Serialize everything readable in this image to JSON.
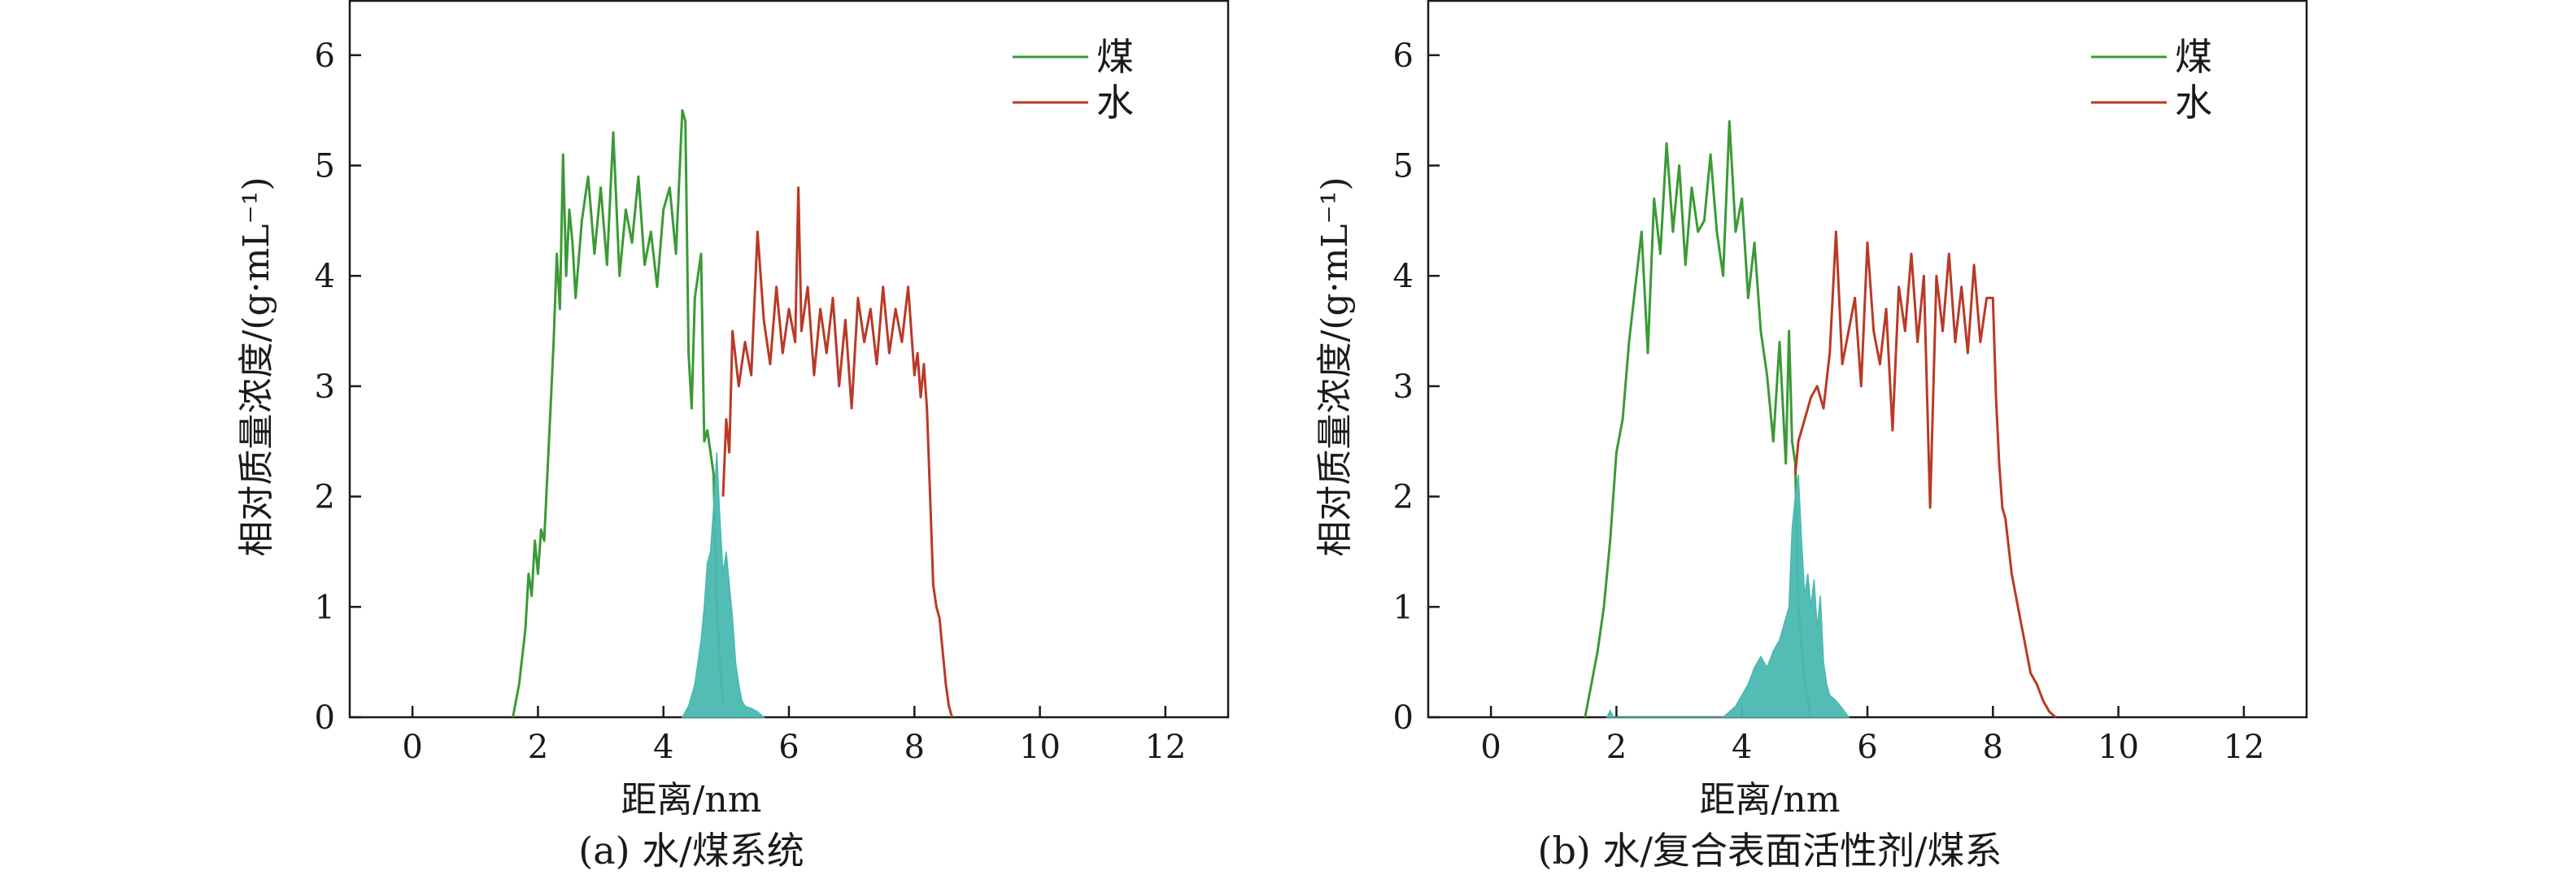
{
  "chart_data": [
    {
      "type": "line",
      "caption": "(a) 水/煤系统",
      "xlabel": "距离/nm",
      "ylabel": "相对质量浓度/(g·mL⁻¹)",
      "xlim": [
        -1,
        13
      ],
      "ylim": [
        0,
        6.5
      ],
      "xticks": [
        0,
        2,
        4,
        6,
        8,
        10,
        12
      ],
      "yticks": [
        0,
        1,
        2,
        3,
        4,
        5,
        6
      ],
      "legend_position": "top-right",
      "series": [
        {
          "name": "煤",
          "color": "#3a9a35",
          "x": [
            1.6,
            1.7,
            1.8,
            1.85,
            1.9,
            1.95,
            2.0,
            2.05,
            2.1,
            2.15,
            2.2,
            2.25,
            2.3,
            2.35,
            2.4,
            2.45,
            2.5,
            2.55,
            2.6,
            2.7,
            2.8,
            2.9,
            3.0,
            3.1,
            3.2,
            3.3,
            3.4,
            3.5,
            3.6,
            3.7,
            3.8,
            3.9,
            4.0,
            4.1,
            4.2,
            4.3,
            4.35,
            4.4,
            4.45,
            4.5,
            4.55,
            4.6,
            4.65,
            4.7,
            4.75,
            4.8,
            4.85,
            4.9,
            4.95
          ],
          "y": [
            0.0,
            0.3,
            0.8,
            1.3,
            1.1,
            1.6,
            1.3,
            1.7,
            1.6,
            2.2,
            2.8,
            3.4,
            4.2,
            3.7,
            5.1,
            4.0,
            4.6,
            4.3,
            3.8,
            4.5,
            4.9,
            4.2,
            4.8,
            4.1,
            5.3,
            4.0,
            4.6,
            4.3,
            4.9,
            4.1,
            4.4,
            3.9,
            4.6,
            4.8,
            4.2,
            5.5,
            5.4,
            3.3,
            2.8,
            3.8,
            4.0,
            4.2,
            2.5,
            2.6,
            2.4,
            2.2,
            1.0,
            0.5,
            0.1
          ]
        },
        {
          "name": "水",
          "color": "#b83a26",
          "x": [
            4.95,
            5.0,
            5.05,
            5.1,
            5.2,
            5.3,
            5.4,
            5.5,
            5.6,
            5.7,
            5.8,
            5.9,
            6.0,
            6.1,
            6.15,
            6.2,
            6.3,
            6.4,
            6.5,
            6.6,
            6.7,
            6.8,
            6.9,
            7.0,
            7.1,
            7.2,
            7.3,
            7.4,
            7.5,
            7.6,
            7.7,
            7.8,
            7.9,
            8.0,
            8.05,
            8.1,
            8.15,
            8.2,
            8.25,
            8.3,
            8.35,
            8.4,
            8.45,
            8.5,
            8.55,
            8.6
          ],
          "y": [
            2.0,
            2.7,
            2.4,
            3.5,
            3.0,
            3.4,
            3.1,
            4.4,
            3.6,
            3.2,
            3.9,
            3.3,
            3.7,
            3.4,
            4.8,
            3.5,
            3.9,
            3.1,
            3.7,
            3.3,
            3.8,
            3.0,
            3.6,
            2.8,
            3.8,
            3.4,
            3.7,
            3.2,
            3.9,
            3.3,
            3.7,
            3.4,
            3.9,
            3.1,
            3.3,
            2.9,
            3.2,
            2.8,
            2.0,
            1.2,
            1.0,
            0.9,
            0.6,
            0.3,
            0.1,
            0.0
          ]
        },
        {
          "name": "",
          "kind": "filled-area",
          "color": "#4ab8b0",
          "x": [
            4.3,
            4.4,
            4.5,
            4.6,
            4.65,
            4.7,
            4.75,
            4.8,
            4.85,
            4.9,
            4.95,
            5.0,
            5.05,
            5.1,
            5.15,
            5.2,
            5.25,
            5.3,
            5.4,
            5.5,
            5.6
          ],
          "y": [
            0.0,
            0.1,
            0.3,
            0.7,
            1.0,
            1.4,
            1.5,
            1.9,
            2.4,
            1.8,
            1.3,
            1.5,
            1.2,
            0.9,
            0.5,
            0.3,
            0.15,
            0.1,
            0.08,
            0.05,
            0.0
          ]
        }
      ]
    },
    {
      "type": "line",
      "caption": "(b) 水/复合表面活性剂/煤系",
      "xlabel": "距离/nm",
      "ylabel": "相对质量浓度/(g·mL⁻¹)",
      "xlim": [
        -1,
        13
      ],
      "ylim": [
        0,
        6.5
      ],
      "xticks": [
        0,
        2,
        4,
        6,
        8,
        10,
        12
      ],
      "yticks": [
        0,
        1,
        2,
        3,
        4,
        5,
        6
      ],
      "legend_position": "top-right",
      "series": [
        {
          "name": "煤",
          "color": "#3a9a35",
          "x": [
            1.5,
            1.6,
            1.7,
            1.8,
            1.9,
            2.0,
            2.1,
            2.2,
            2.3,
            2.4,
            2.5,
            2.6,
            2.7,
            2.8,
            2.9,
            3.0,
            3.1,
            3.2,
            3.3,
            3.4,
            3.5,
            3.6,
            3.7,
            3.8,
            3.9,
            4.0,
            4.1,
            4.2,
            4.3,
            4.4,
            4.5,
            4.6,
            4.7,
            4.75,
            4.8,
            4.85,
            4.9,
            5.0,
            5.1
          ],
          "y": [
            0.0,
            0.3,
            0.6,
            1.0,
            1.6,
            2.4,
            2.7,
            3.4,
            3.9,
            4.4,
            3.3,
            4.7,
            4.2,
            5.2,
            4.4,
            5.0,
            4.1,
            4.8,
            4.4,
            4.5,
            5.1,
            4.4,
            4.0,
            5.4,
            4.4,
            4.7,
            3.8,
            4.3,
            3.5,
            3.1,
            2.5,
            3.4,
            2.3,
            3.5,
            2.5,
            2.3,
            1.0,
            0.3,
            0.0
          ]
        },
        {
          "name": "水",
          "color": "#b83a26",
          "x": [
            4.85,
            4.9,
            5.0,
            5.1,
            5.2,
            5.3,
            5.4,
            5.5,
            5.6,
            5.7,
            5.8,
            5.9,
            6.0,
            6.1,
            6.2,
            6.3,
            6.4,
            6.5,
            6.6,
            6.7,
            6.8,
            6.9,
            7.0,
            7.1,
            7.2,
            7.3,
            7.4,
            7.5,
            7.6,
            7.7,
            7.8,
            7.9,
            8.0,
            8.05,
            8.1,
            8.15,
            8.2,
            8.3,
            8.4,
            8.5,
            8.6,
            8.7,
            8.8,
            8.9,
            9.0
          ],
          "y": [
            2.2,
            2.5,
            2.7,
            2.9,
            3.0,
            2.8,
            3.3,
            4.4,
            3.2,
            3.5,
            3.8,
            3.0,
            4.3,
            3.5,
            3.2,
            3.7,
            2.6,
            3.9,
            3.5,
            4.2,
            3.4,
            4.0,
            1.9,
            4.0,
            3.5,
            4.2,
            3.4,
            3.9,
            3.3,
            4.1,
            3.4,
            3.8,
            3.8,
            2.9,
            2.3,
            1.9,
            1.8,
            1.3,
            1.0,
            0.7,
            0.4,
            0.3,
            0.15,
            0.05,
            0.0
          ]
        },
        {
          "name": "",
          "kind": "filled-area",
          "color": "#4ab8b0",
          "x": [
            1.85,
            1.9,
            1.95,
            3.7,
            3.8,
            3.9,
            4.0,
            4.1,
            4.2,
            4.3,
            4.4,
            4.5,
            4.6,
            4.7,
            4.75,
            4.8,
            4.85,
            4.9,
            4.95,
            5.0,
            5.05,
            5.1,
            5.15,
            5.2,
            5.25,
            5.3,
            5.35,
            5.4,
            5.5,
            5.6,
            5.7
          ],
          "y": [
            0.0,
            0.06,
            0.0,
            0.0,
            0.05,
            0.1,
            0.2,
            0.3,
            0.45,
            0.55,
            0.45,
            0.6,
            0.7,
            0.9,
            1.0,
            1.7,
            2.0,
            2.2,
            1.6,
            1.1,
            1.3,
            1.0,
            1.25,
            0.8,
            1.1,
            0.5,
            0.3,
            0.2,
            0.15,
            0.08,
            0.0
          ]
        }
      ]
    }
  ]
}
